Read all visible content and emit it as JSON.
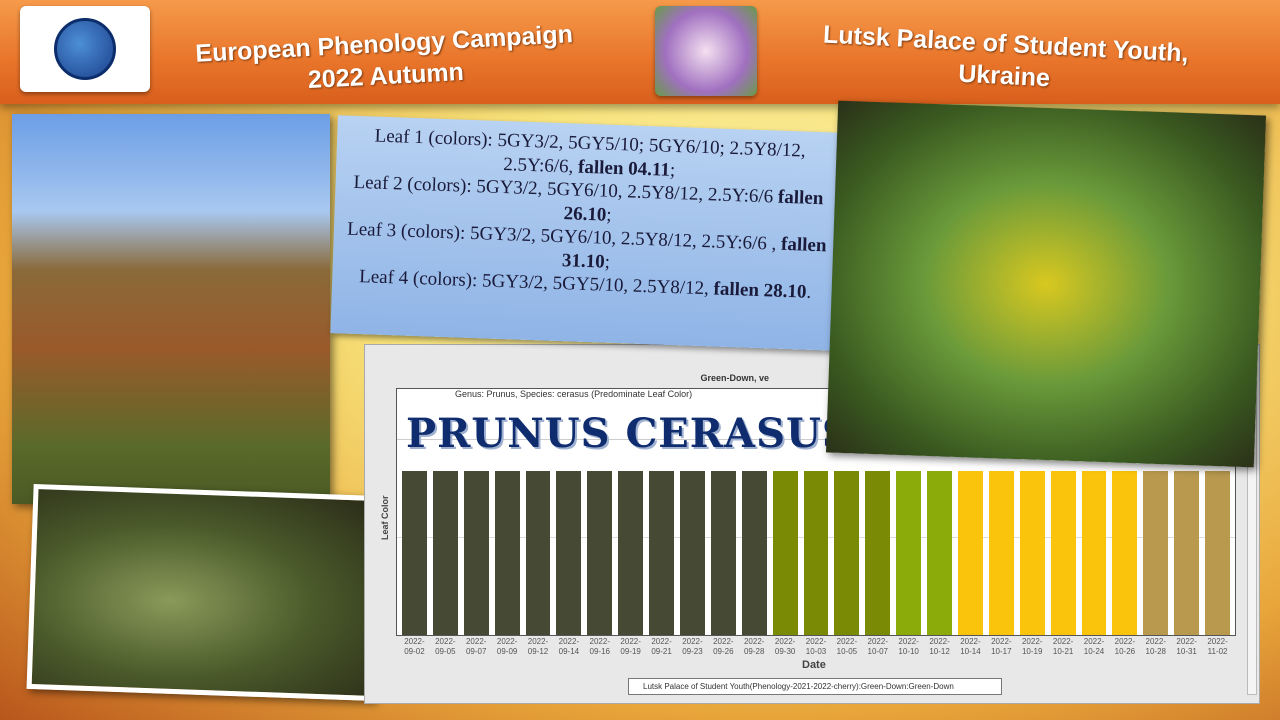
{
  "header": {
    "logo_left": "The GLOBE Program",
    "title": "European Phenology Campaign 2022 Autumn",
    "title_line1": "European Phenology Campaign",
    "title_line2": "2022 Autumn",
    "org_line1": "Lutsk Palace of Student Youth,",
    "org_line2": "Ukraine"
  },
  "notes": {
    "l1a": "Leaf 1 (colors): 5GY3/2, 5GY5/10; 5GY6/10; 2.5Y8/12, 2.5Y:6/6, ",
    "l1b": "fallen 04.11",
    "l2a": "Leaf 2 (colors): 5GY3/2, 5GY6/10, 2.5Y8/12, 2.5Y:6/6 ",
    "l2b": "fallen 26.10",
    "l3a": "Leaf 3 (colors): 5GY3/2, 5GY6/10, 2.5Y8/12, 2.5Y:6/6 , ",
    "l3b": "fallen 31.10",
    "l4a": "Leaf 4 (colors): 5GY3/2, 5GY5/10, 2.5Y8/12, ",
    "l4b": "fallen 28.10"
  },
  "window": {
    "title_fragment": "Green-Down, ve",
    "close": "×"
  },
  "species_overlay": "PRUNUS CERASUS",
  "chart_data": {
    "type": "bar",
    "title": "Genus: Prunus, Species: cerasus (Predominate Leaf Color)",
    "xlabel": "Date",
    "ylabel": "Leaf Color",
    "categories": [
      "2022-09-02",
      "2022-09-05",
      "2022-09-07",
      "2022-09-09",
      "2022-09-12",
      "2022-09-14",
      "2022-09-16",
      "2022-09-19",
      "2022-09-21",
      "2022-09-23",
      "2022-09-26",
      "2022-09-28",
      "2022-09-30",
      "2022-10-03",
      "2022-10-05",
      "2022-10-07",
      "2022-10-10",
      "2022-10-12",
      "2022-10-14",
      "2022-10-17",
      "2022-10-19",
      "2022-10-21",
      "2022-10-24",
      "2022-10-26",
      "2022-10-28",
      "2022-10-31",
      "2022-11-02"
    ],
    "values": [
      1,
      1,
      1,
      1,
      1,
      1,
      1,
      1,
      1,
      1,
      1,
      1,
      1,
      1,
      1,
      1,
      1,
      1,
      1,
      1,
      1,
      1,
      1,
      1,
      1,
      1,
      1
    ],
    "colors": [
      "#464a35",
      "#464a35",
      "#464a35",
      "#464a35",
      "#464a35",
      "#464a35",
      "#464a35",
      "#464a35",
      "#464a35",
      "#464a35",
      "#464a35",
      "#464a35",
      "#7a8a05",
      "#7a8a05",
      "#7a8a05",
      "#7a8a05",
      "#8aab0a",
      "#8aab0a",
      "#fbc40c",
      "#fbc40c",
      "#fbc40c",
      "#fbc40c",
      "#fbc40c",
      "#fbc40c",
      "#b8994e",
      "#b8994e",
      "#b8994e"
    ],
    "legend": "Lutsk Palace of Student Youth(Phenology-2021-2022-cherry):Green-Down:Green-Down",
    "grid": true
  }
}
